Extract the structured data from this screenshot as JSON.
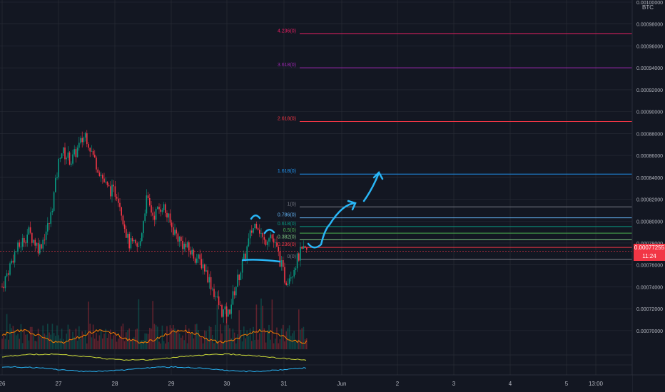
{
  "chart_data": {
    "type": "line",
    "currency": "BTC",
    "pair_icon": "chart-candlestick-icon",
    "x_ticks": [
      "26",
      "27",
      "28",
      "29",
      "30",
      "31",
      "Jun",
      "2",
      "3",
      "4",
      "5",
      "13:00"
    ],
    "y_ticks": [
      "0.00100000",
      "0.00098000",
      "0.00096000",
      "0.00094000",
      "0.00092000",
      "0.00090000",
      "0.00088000",
      "0.00086000",
      "0.00084000",
      "0.00082000",
      "0.00080000",
      "0.00078000",
      "0.00076000",
      "0.00074000",
      "0.00072000",
      "0.00070000"
    ],
    "y_range": [
      0.000683,
      0.001
    ],
    "grid": true,
    "current_price": "0.00077255",
    "countdown": "11:24",
    "fib_levels": [
      {
        "label": "4.236(0)",
        "value": 0.000971,
        "color": "#e91e63"
      },
      {
        "label": "3.618(0)",
        "value": 0.00094,
        "color": "#9c27b0"
      },
      {
        "label": "2.618(0)",
        "value": 0.000891,
        "color": "#f23645"
      },
      {
        "label": "1.618(0)",
        "value": 0.000843,
        "color": "#2196f3"
      },
      {
        "label": "1(0)",
        "value": 0.000813,
        "color": "#787b86"
      },
      {
        "label": "0.786(0)",
        "value": 0.000803,
        "color": "#64b5f6"
      },
      {
        "label": "0.618(0)",
        "value": 0.000795,
        "color": "#089981"
      },
      {
        "label": "0.5(0)",
        "value": 0.000789,
        "color": "#4caf50"
      },
      {
        "label": "0.382(0)",
        "value": 0.000783,
        "color": "#81c784"
      },
      {
        "label": "0.236(0)",
        "value": 0.000776,
        "color": "#f23645"
      },
      {
        "label": "0(0)",
        "value": 0.000765,
        "color": "#787b86"
      }
    ],
    "colors": {
      "background": "#131722",
      "grid": "#2a2e39",
      "up": "#089981",
      "down": "#f23645",
      "annotation": "#29b6f6",
      "volume_ma": "#f57c00",
      "osc1": "#cddc39",
      "osc2": "#29b6f6"
    }
  }
}
